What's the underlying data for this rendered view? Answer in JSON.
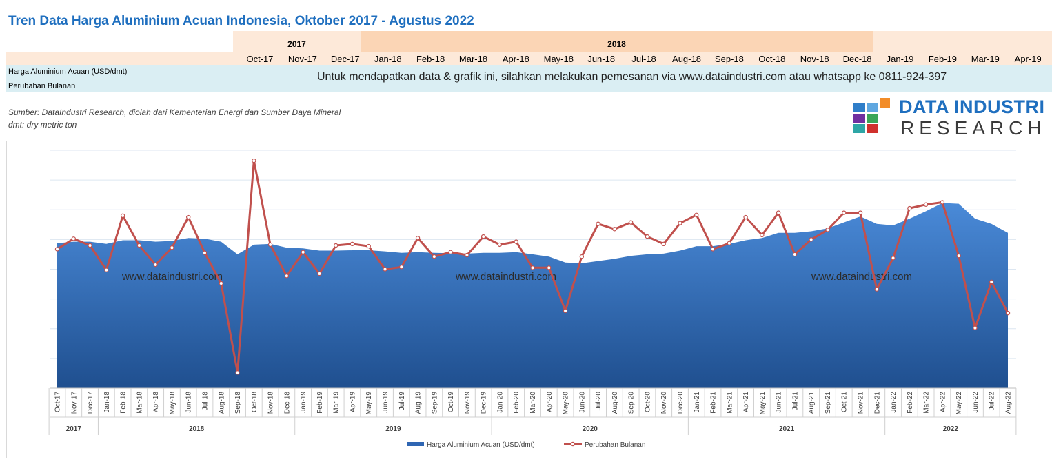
{
  "title": "Tren Data Harga Aluminium Acuan Indonesia, Oktober 2017 - Agustus 2022",
  "table_header": {
    "years": [
      "2017",
      "2018",
      ""
    ],
    "months": [
      "Oct-17",
      "Nov-17",
      "Dec-17",
      "Jan-18",
      "Feb-18",
      "Mar-18",
      "Apr-18",
      "May-18",
      "Jun-18",
      "Jul-18",
      "Aug-18",
      "Sep-18",
      "Oct-18",
      "Nov-18",
      "Dec-18",
      "Jan-19",
      "Feb-19",
      "Mar-19",
      "Apr-19"
    ],
    "row_labels": [
      "Harga Aluminium Acuan (USD/dmt)",
      "Perubahan Bulanan"
    ],
    "notice": "Untuk mendapatkan data & grafik ini, silahkan melakukan pemesanan via www.dataindustri.com atau whatsapp ke 0811-924-397"
  },
  "source": {
    "line1": "Sumber: DataIndustri Research, diolah dari Kementerian Energi dan Sumber Daya Mineral",
    "line2": "dmt: dry metric ton"
  },
  "logo": {
    "line1": "DATA INDUSTRI",
    "line2": "RESEARCH"
  },
  "watermark": "www.dataindustri.com",
  "colors": {
    "title": "#1f6fbf",
    "area_top": "#4a8ad8",
    "area_bottom": "#1f4f8f",
    "line": "#c0504d",
    "header_2017": "#fde9d9",
    "header_2018": "#fbd5b5",
    "data_band": "#daeef3"
  },
  "chart_data": {
    "type": "area",
    "x_months": [
      "Oct-17",
      "Nov-17",
      "Dec-17",
      "Jan-18",
      "Feb-18",
      "Mar-18",
      "Apr-18",
      "May-18",
      "Jun-18",
      "Jul-18",
      "Aug-18",
      "Sep-18",
      "Oct-18",
      "Nov-18",
      "Dec-18",
      "Jan-19",
      "Feb-19",
      "Mar-19",
      "Apr-19",
      "May-19",
      "Jun-19",
      "Jul-19",
      "Aug-19",
      "Sep-19",
      "Oct-19",
      "Nov-19",
      "Dec-19",
      "Jan-20",
      "Feb-20",
      "Mar-20",
      "Apr-20",
      "May-20",
      "Jun-20",
      "Jul-20",
      "Aug-20",
      "Sep-20",
      "Oct-20",
      "Nov-20",
      "Dec-20",
      "Jan-21",
      "Feb-21",
      "Mar-21",
      "Apr-21",
      "May-21",
      "Jun-21",
      "Jul-21",
      "Aug-21",
      "Sep-21",
      "Oct-21",
      "Nov-21",
      "Dec-21",
      "Jan-22",
      "Feb-22",
      "Mar-22",
      "Apr-22",
      "May-22",
      "Jun-22",
      "Jul-22",
      "Aug-22"
    ],
    "x_years": [
      {
        "label": "2017",
        "count": 3
      },
      {
        "label": "2018",
        "count": 12
      },
      {
        "label": "2019",
        "count": 12
      },
      {
        "label": "2020",
        "count": 12
      },
      {
        "label": "2021",
        "count": 12
      },
      {
        "label": "2022",
        "count": 8
      }
    ],
    "series": [
      {
        "name": "Harga Aluminium Acuan (USD/dmt)",
        "kind": "area",
        "values": [
          0.55,
          0.57,
          0.57,
          0.54,
          0.59,
          0.59,
          0.57,
          0.58,
          0.62,
          0.61,
          0.57,
          0.4,
          0.53,
          0.54,
          0.49,
          0.48,
          0.45,
          0.45,
          0.455,
          0.455,
          0.44,
          0.42,
          0.43,
          0.42,
          0.415,
          0.41,
          0.42,
          0.42,
          0.43,
          0.4,
          0.37,
          0.29,
          0.28,
          0.31,
          0.34,
          0.38,
          0.4,
          0.41,
          0.45,
          0.51,
          0.51,
          0.54,
          0.59,
          0.62,
          0.69,
          0.69,
          0.71,
          0.75,
          0.83,
          0.91,
          0.81,
          0.79,
          0.88,
          0.98,
          1.09,
          1.08,
          0.88,
          0.81,
          0.69
        ]
      },
      {
        "name": "Perubahan Bulanan",
        "kind": "line",
        "values": [
          0.47,
          0.61,
          0.52,
          0.19,
          0.92,
          0.52,
          0.26,
          0.49,
          0.9,
          0.42,
          0.01,
          -1.19,
          1.66,
          0.53,
          0.11,
          0.43,
          0.14,
          0.52,
          0.54,
          0.51,
          0.2,
          0.23,
          0.62,
          0.37,
          0.43,
          0.39,
          0.64,
          0.53,
          0.57,
          0.22,
          0.22,
          -0.36,
          0.37,
          0.81,
          0.74,
          0.83,
          0.64,
          0.54,
          0.82,
          0.93,
          0.47,
          0.55,
          0.9,
          0.66,
          0.96,
          0.4,
          0.6,
          0.73,
          0.96,
          0.96,
          -0.07,
          0.35,
          1.02,
          1.07,
          1.1,
          0.38,
          -0.59,
          0.03,
          -0.39
        ]
      }
    ],
    "ylim": [
      -1.4,
      1.8
    ],
    "legend_position": "bottom",
    "grid": true
  }
}
